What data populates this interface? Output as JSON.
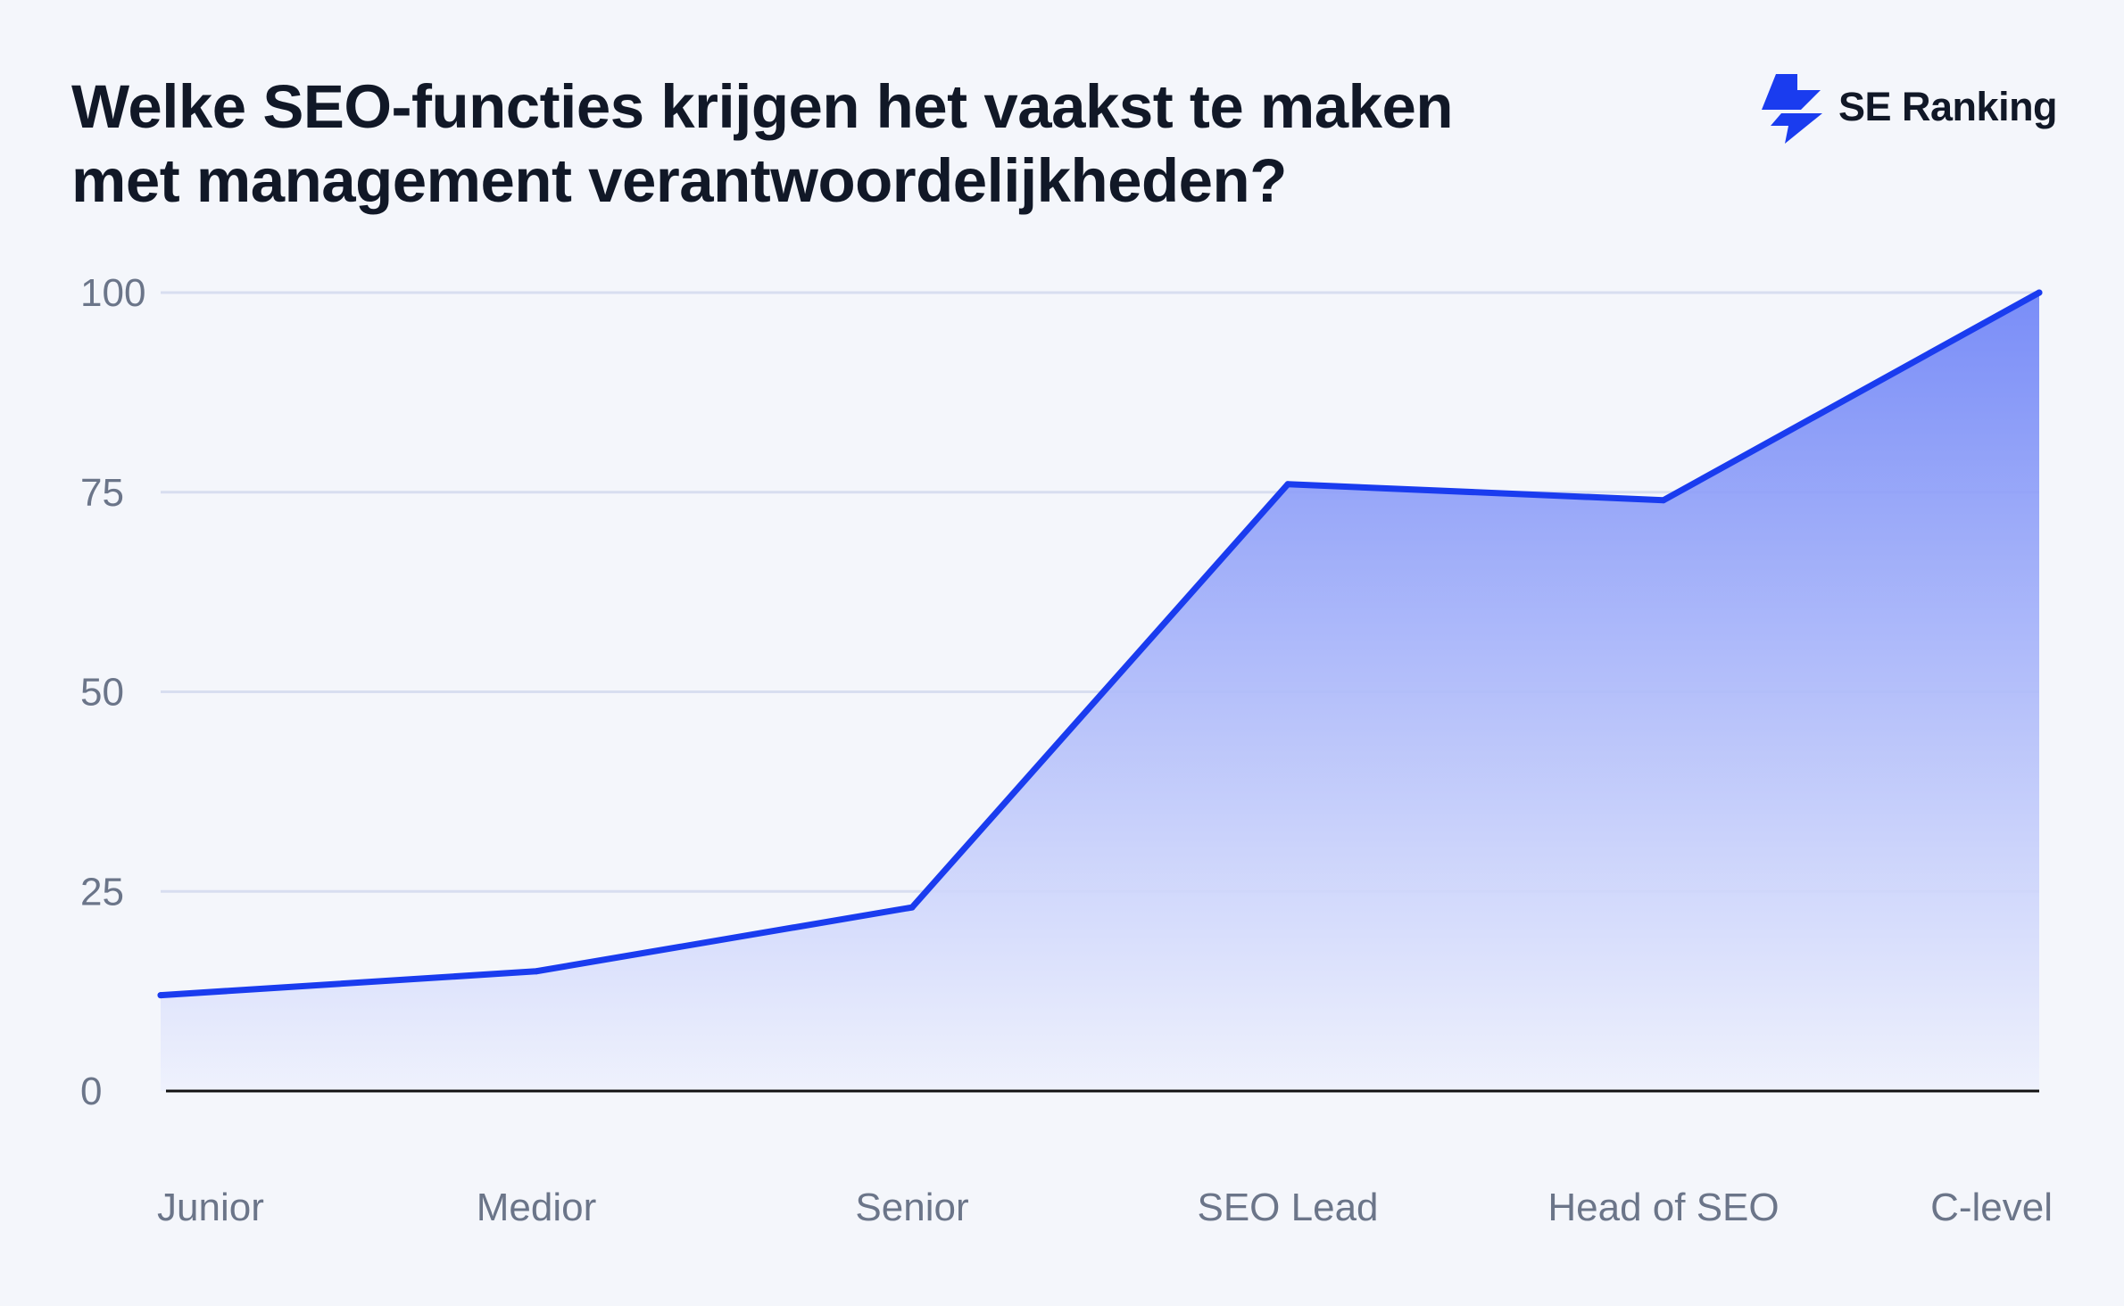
{
  "title_lines": [
    "Welke SEO-functies krijgen het vaakst te maken",
    "met management verantwoordelijkheden?"
  ],
  "brand": {
    "name": "SE Ranking",
    "icon": "se-ranking-logo-icon"
  },
  "colors": {
    "line": "#1a3cef",
    "fill_top": "#6f84f7",
    "fill_bottom": "#eef1fd",
    "grid": "#d8def0",
    "axis": "#111111",
    "tick_text": "#6b7589"
  },
  "chart_data": {
    "type": "area",
    "title": "Welke SEO-functies krijgen het vaakst te maken met management verantwoordelijkheden?",
    "xlabel": "",
    "ylabel": "",
    "categories": [
      "Junior",
      "Medior",
      "Senior",
      "SEO Lead",
      "Head of SEO",
      "C-level"
    ],
    "series": [
      {
        "values": [
          12,
          15,
          23,
          76,
          74,
          100
        ]
      }
    ],
    "ylim": [
      0,
      100
    ],
    "yticks": [
      0,
      25,
      50,
      75,
      100
    ],
    "grid": true,
    "legend": "none"
  }
}
